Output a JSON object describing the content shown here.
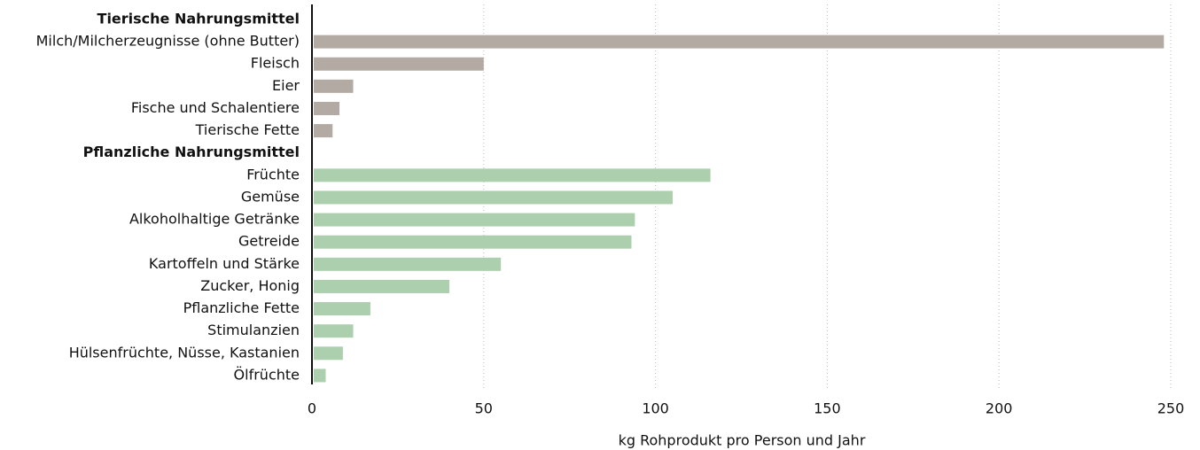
{
  "chart_data": {
    "type": "bar",
    "orientation": "horizontal",
    "x_label": "kg Rohprodukt pro Person und Jahr",
    "groups": [
      {
        "name": "Tierische Nahrungsmittel",
        "color": "#b3aba3",
        "categories": [
          "Milch/Milcherzeugnisse (ohne Butter)",
          "Fleisch",
          "Eier",
          "Fische und Schalentiere",
          "Tierische Fette"
        ],
        "values": [
          248,
          50,
          12,
          8,
          6
        ]
      },
      {
        "name": "Pflanzliche Nahrungsmittel",
        "color": "#accfad",
        "categories": [
          "Früchte",
          "Gemüse",
          "Alkoholhaltige Getränke",
          "Getreide",
          "Kartoffeln und Stärke",
          "Zucker, Honig",
          "Pflanzliche Fette",
          "Stimulanzien",
          "Hülsenfrüchte, Nüsse, Kastanien",
          "Ölfrüchte"
        ],
        "values": [
          116,
          105,
          94,
          93,
          55,
          40,
          17,
          12,
          9,
          4
        ]
      }
    ],
    "xlim": [
      0,
      250
    ],
    "xticks": [
      0,
      50,
      100,
      150,
      200,
      250
    ],
    "grid": true
  }
}
